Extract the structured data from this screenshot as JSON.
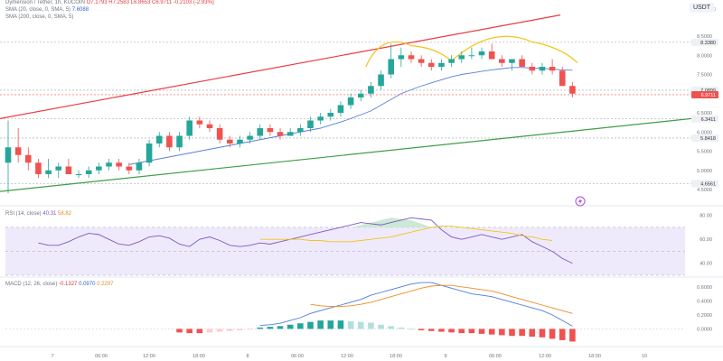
{
  "header": {
    "pair": "Dymension / Tether, 1h, KUCOIN",
    "ohlc": "O7.1793 H7.2583 L6.8653 C6.9711 -0.2103 (-2.93%)",
    "sma20_label": "SMA (20, close, 0, SMA, 5)",
    "sma20_value": "7.6088",
    "sma200_label": "SMA (200, close, 0, SMA, 5)",
    "rsi_label": "RSI (14, close)",
    "rsi_value": "40.31",
    "rsi_ma": "58.82",
    "macd_label": "MACD (12, 26, close)",
    "macd_value1": "-0.1327",
    "macd_value2": "0.0970",
    "macd_value3": "0.2297",
    "currency": "USDT"
  },
  "colors": {
    "up": "#26a69a",
    "down": "#ef5350",
    "sma": "#5b7fd6",
    "arc": "#f2c418",
    "upper_trend": "#ea3a43",
    "lower_trend": "#3e9e48",
    "rsi": "#7e57c2",
    "rsi_ma": "#f2c418",
    "macd": "#4f7ad8",
    "signal": "#f08a24"
  },
  "price_badges": [
    {
      "value": "8.3380",
      "color": "#eef0f4",
      "text": "#30343b"
    },
    {
      "value": "7.0899",
      "color": "#eef0f4",
      "text": "#30343b"
    },
    {
      "value": "6.9711",
      "color": "#ef5350",
      "text": "#ffffff"
    },
    {
      "value": "6.3411",
      "color": "#eef0f4",
      "text": "#30343b"
    },
    {
      "value": "5.8418",
      "color": "#eef0f4",
      "text": "#30343b"
    },
    {
      "value": "4.6561",
      "color": "#eef0f4",
      "text": "#30343b"
    }
  ],
  "chart_data": {
    "type": "candlestick",
    "price_ticks": [
      "9.0000",
      "8.5000",
      "8.0000",
      "7.5000",
      "7.0000",
      "6.5000",
      "6.0000",
      "5.5000",
      "5.0000",
      "4.5000"
    ],
    "time_ticks": [
      "7",
      "06:00",
      "12:00",
      "18:00",
      "8",
      "06:00",
      "12:00",
      "18:00",
      "9",
      "06:00",
      "12:00",
      "18:00",
      "10"
    ],
    "ohlc": [
      [
        5.2,
        6.3,
        4.4,
        5.6
      ],
      [
        5.6,
        6.1,
        5.2,
        5.4
      ],
      [
        5.4,
        5.6,
        5.0,
        5.2
      ],
      [
        5.2,
        5.3,
        4.8,
        4.9
      ],
      [
        4.9,
        5.3,
        4.8,
        5.0
      ],
      [
        5.0,
        5.2,
        4.8,
        5.1
      ],
      [
        5.1,
        5.3,
        4.9,
        4.9
      ],
      [
        4.9,
        5.0,
        4.8,
        4.9
      ],
      [
        4.9,
        5.1,
        4.8,
        5.0
      ],
      [
        5.0,
        5.2,
        4.9,
        5.1
      ],
      [
        5.1,
        5.3,
        5.0,
        5.2
      ],
      [
        5.2,
        5.3,
        5.0,
        5.1
      ],
      [
        5.1,
        5.2,
        4.9,
        5.0
      ],
      [
        5.0,
        5.3,
        4.9,
        5.2
      ],
      [
        5.2,
        5.8,
        5.1,
        5.7
      ],
      [
        5.7,
        6.0,
        5.6,
        5.9
      ],
      [
        5.9,
        6.0,
        5.5,
        5.6
      ],
      [
        5.6,
        6.0,
        5.5,
        5.9
      ],
      [
        5.9,
        6.4,
        5.8,
        6.3
      ],
      [
        6.3,
        6.4,
        6.1,
        6.2
      ],
      [
        6.2,
        6.3,
        6.0,
        6.1
      ],
      [
        6.1,
        6.2,
        5.7,
        5.8
      ],
      [
        5.8,
        5.9,
        5.6,
        5.7
      ],
      [
        5.7,
        5.9,
        5.6,
        5.8
      ],
      [
        5.8,
        6.0,
        5.7,
        5.9
      ],
      [
        5.9,
        6.2,
        5.8,
        6.1
      ],
      [
        6.1,
        6.2,
        5.9,
        6.0
      ],
      [
        6.0,
        6.1,
        5.8,
        5.9
      ],
      [
        5.9,
        6.1,
        5.9,
        6.0
      ],
      [
        6.0,
        6.2,
        5.9,
        6.1
      ],
      [
        6.1,
        6.4,
        6.0,
        6.3
      ],
      [
        6.3,
        6.5,
        6.2,
        6.4
      ],
      [
        6.4,
        6.6,
        6.3,
        6.5
      ],
      [
        6.5,
        6.8,
        6.4,
        6.7
      ],
      [
        6.7,
        7.0,
        6.6,
        6.9
      ],
      [
        6.9,
        7.1,
        6.8,
        7.0
      ],
      [
        7.0,
        7.3,
        6.9,
        7.2
      ],
      [
        7.2,
        7.6,
        7.1,
        7.5
      ],
      [
        7.5,
        8.3,
        7.4,
        7.9
      ],
      [
        7.9,
        8.2,
        7.7,
        8.0
      ],
      [
        8.0,
        8.1,
        7.8,
        7.9
      ],
      [
        7.9,
        8.0,
        7.7,
        7.8
      ],
      [
        7.8,
        7.9,
        7.6,
        7.7
      ],
      [
        7.7,
        7.9,
        7.6,
        7.8
      ],
      [
        7.8,
        8.0,
        7.7,
        7.9
      ],
      [
        7.9,
        8.1,
        7.8,
        8.0
      ],
      [
        8.0,
        8.2,
        7.9,
        8.0
      ],
      [
        8.0,
        8.2,
        7.9,
        8.1
      ],
      [
        8.1,
        8.3,
        7.9,
        7.9
      ],
      [
        7.9,
        8.0,
        7.7,
        7.8
      ],
      [
        7.8,
        7.9,
        7.6,
        7.9
      ],
      [
        7.9,
        8.0,
        7.7,
        7.7
      ],
      [
        7.7,
        7.8,
        7.5,
        7.6
      ],
      [
        7.6,
        7.8,
        7.5,
        7.7
      ],
      [
        7.7,
        7.9,
        7.5,
        7.6
      ],
      [
        7.6,
        7.7,
        7.2,
        7.2
      ],
      [
        7.2,
        7.3,
        6.9,
        7.0
      ]
    ],
    "sma20": [
      5.15,
      5.2,
      5.25,
      5.3,
      5.35,
      5.4,
      5.45,
      5.5,
      5.55,
      5.6,
      5.65,
      5.7,
      5.75,
      5.8,
      5.85,
      5.9,
      5.95,
      6.0,
      6.05,
      6.1,
      6.18,
      6.26,
      6.35,
      6.45,
      6.55,
      6.7,
      6.85,
      7.0,
      7.1,
      7.2,
      7.28,
      7.36,
      7.44,
      7.5,
      7.54,
      7.58,
      7.62,
      7.65,
      7.68,
      7.68,
      7.67,
      7.66,
      7.64,
      7.62,
      7.61
    ],
    "sma20_start_index": 12,
    "rsi": [
      57,
      55,
      55,
      58,
      62,
      65,
      64,
      60,
      56,
      55,
      58,
      62,
      63,
      61,
      56,
      54,
      60,
      62,
      59,
      55,
      54,
      55,
      57,
      56,
      58,
      60,
      62,
      64,
      66,
      68,
      70,
      72,
      74,
      73,
      72,
      74,
      76,
      78,
      77,
      76,
      68,
      62,
      60,
      62,
      64,
      62,
      60,
      62,
      64,
      58,
      54,
      50,
      44,
      40
    ],
    "rsi_start_index": 0,
    "rsi_ticks": [
      "80.00",
      "60.00",
      "40.00"
    ],
    "rsi_ma": [
      60,
      60,
      60,
      60,
      60,
      59,
      59,
      58,
      58,
      58,
      59,
      60,
      61,
      62,
      64,
      66,
      68,
      70,
      71,
      71,
      70,
      69,
      68,
      67,
      66,
      65,
      63,
      62,
      60,
      59
    ],
    "rsi_ma_start_index": 25,
    "macd": [
      0.05,
      0.06,
      0.08,
      0.12,
      0.16,
      0.22,
      0.26,
      0.3,
      0.34,
      0.38,
      0.42,
      0.48,
      0.52,
      0.56,
      0.6,
      0.64,
      0.66,
      0.66,
      0.62,
      0.58,
      0.54,
      0.5,
      0.48,
      0.46,
      0.42,
      0.38,
      0.34,
      0.3,
      0.26,
      0.2,
      0.12,
      0.04
    ],
    "signal": [
      0.35,
      0.33,
      0.32,
      0.32,
      0.33,
      0.35,
      0.38,
      0.42,
      0.46,
      0.5,
      0.54,
      0.58,
      0.61,
      0.62,
      0.62,
      0.6,
      0.58,
      0.56,
      0.54,
      0.5,
      0.46,
      0.42,
      0.38,
      0.34,
      0.3,
      0.26,
      0.22
    ],
    "macd_start_index": 25,
    "signal_start_index": 30,
    "macd_ticks": [
      "0.6000",
      "0.4000",
      "0.2000",
      "0.0000"
    ],
    "histogram": [
      -0.05,
      -0.06,
      -0.06,
      -0.05,
      -0.04,
      -0.03,
      -0.02,
      -0.01,
      0.02,
      0.03,
      0.04,
      0.06,
      0.08,
      0.1,
      0.12,
      0.12,
      0.12,
      0.11,
      0.1,
      0.09,
      0.06,
      0.04,
      0.02,
      0.0,
      -0.02,
      -0.03,
      -0.04,
      -0.05,
      -0.06,
      -0.06,
      -0.07,
      -0.08,
      -0.09,
      -0.1,
      -0.1,
      -0.11,
      -0.12,
      -0.14,
      -0.16,
      -0.18
    ]
  }
}
